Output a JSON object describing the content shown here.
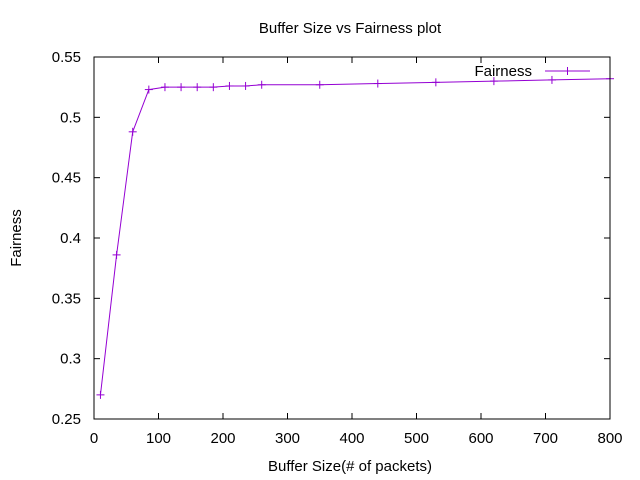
{
  "chart_data": {
    "type": "line",
    "title": "Buffer Size vs Fairness plot",
    "xlabel": "Buffer Size(# of packets)",
    "ylabel": "Fairness",
    "xlim": [
      0,
      800
    ],
    "ylim": [
      0.25,
      0.55
    ],
    "xticks": [
      "0",
      "100",
      "200",
      "300",
      "400",
      "500",
      "600",
      "700",
      "800"
    ],
    "yticks": [
      "0.25",
      "0.3",
      "0.35",
      "0.4",
      "0.45",
      "0.5",
      "0.55"
    ],
    "grid": false,
    "legend_position": "top-right",
    "series": [
      {
        "name": "Fairness",
        "color": "#9400d3",
        "marker": "plus",
        "points": [
          [
            10,
            0.27
          ],
          [
            35,
            0.386
          ],
          [
            60,
            0.488
          ],
          [
            85,
            0.523
          ],
          [
            110,
            0.525
          ],
          [
            135,
            0.525
          ],
          [
            160,
            0.525
          ],
          [
            185,
            0.525
          ],
          [
            210,
            0.526
          ],
          [
            235,
            0.526
          ],
          [
            260,
            0.527
          ],
          [
            350,
            0.527
          ],
          [
            440,
            0.528
          ],
          [
            530,
            0.529
          ],
          [
            620,
            0.53
          ],
          [
            710,
            0.531
          ],
          [
            800,
            0.532
          ]
        ]
      }
    ]
  }
}
